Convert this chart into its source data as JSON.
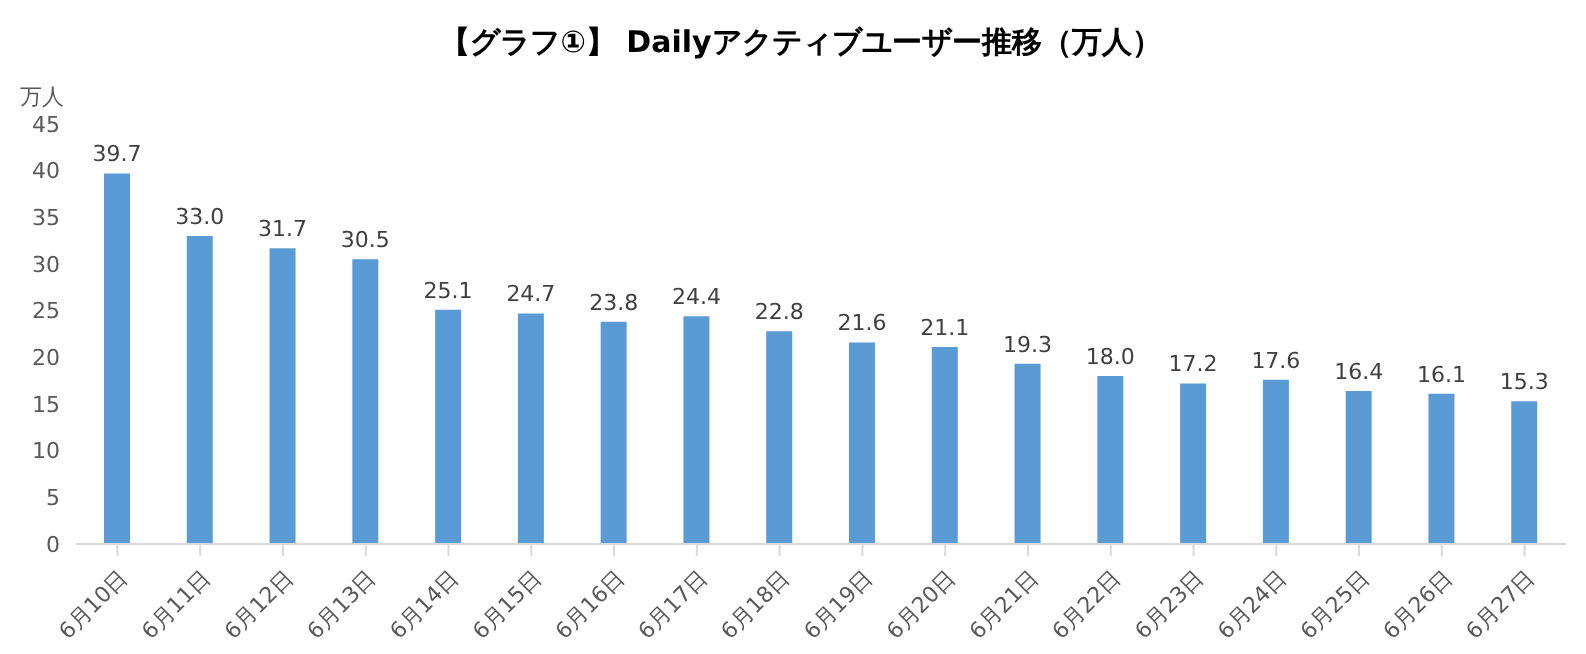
{
  "chart_data": {
    "type": "bar",
    "title": "【グラフ①】 Dailyアクティブユーザー推移（万人）",
    "ylabel": "万人",
    "categories": [
      "6月10日",
      "6月11日",
      "6月12日",
      "6月13日",
      "6月14日",
      "6月15日",
      "6月16日",
      "6月17日",
      "6月18日",
      "6月19日",
      "6月20日",
      "6月21日",
      "6月22日",
      "6月23日",
      "6月24日",
      "6月25日",
      "6月26日",
      "6月27日"
    ],
    "values": [
      39.7,
      33.0,
      31.7,
      30.5,
      25.1,
      24.7,
      23.8,
      24.4,
      22.8,
      21.6,
      21.1,
      19.3,
      18.0,
      17.2,
      17.6,
      16.4,
      16.1,
      15.3
    ],
    "value_labels": [
      "39.7",
      "33.0",
      "31.7",
      "30.5",
      "25.1",
      "24.7",
      "23.8",
      "24.4",
      "22.8",
      "21.6",
      "21.1",
      "19.3",
      "18.0",
      "17.2",
      "17.6",
      "16.4",
      "16.1",
      "15.3"
    ],
    "color": "#5b9bd5",
    "ylim": [
      0,
      45
    ],
    "yticks": [
      0,
      5,
      10,
      15,
      20,
      25,
      30,
      35,
      40,
      45
    ],
    "grid": false,
    "legend": false
  }
}
